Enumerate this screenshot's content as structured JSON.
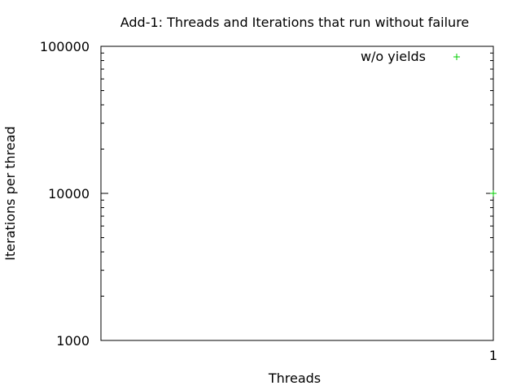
{
  "chart_data": {
    "type": "scatter",
    "title": "Add-1: Threads and Iterations that run without failure",
    "xlabel": "Threads",
    "ylabel": "Iterations per thread",
    "xlim": [
      0,
      1
    ],
    "ylim": [
      1000,
      100000
    ],
    "yscale": "log",
    "x_ticks": [
      {
        "value": 1,
        "label": "1"
      }
    ],
    "y_ticks": [
      {
        "value": 1000,
        "label": "1000"
      },
      {
        "value": 10000,
        "label": "10000"
      },
      {
        "value": 100000,
        "label": "100000"
      }
    ],
    "grid": false,
    "legend": "top-right",
    "series": [
      {
        "name": "w/o yields",
        "color": "#00cc00",
        "marker": "+",
        "points": [
          {
            "x": 1,
            "y": 10000
          }
        ]
      }
    ]
  }
}
